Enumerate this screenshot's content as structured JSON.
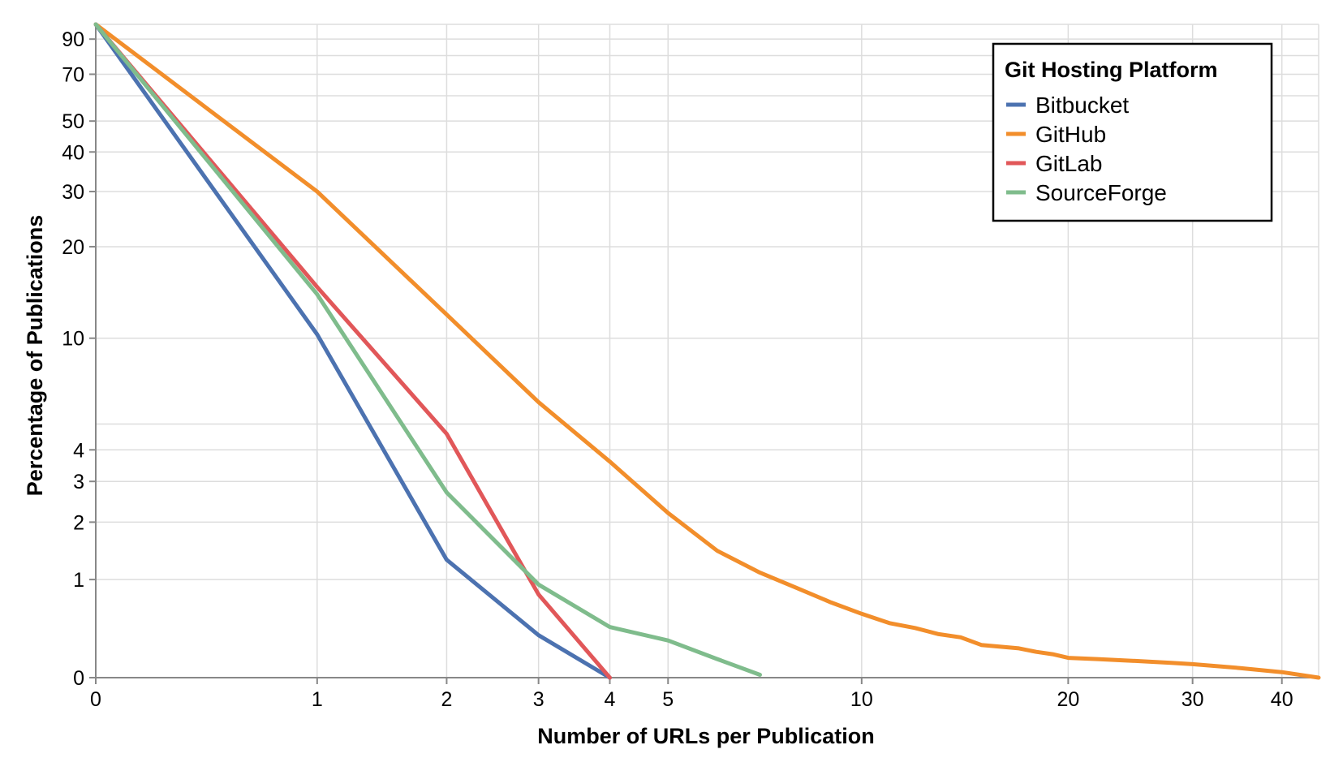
{
  "chart_data": {
    "type": "line",
    "title": "",
    "xlabel": "Number of URLs per Publication",
    "ylabel": "Percentage of Publications",
    "xscale": "symlog",
    "yscale": "symlog",
    "xlim": [
      0,
      45
    ],
    "ylim": [
      0,
      100
    ],
    "x_ticks": [
      0,
      1,
      2,
      3,
      4,
      5,
      10,
      20,
      30,
      40
    ],
    "y_ticks": [
      0,
      1,
      2,
      3,
      4,
      10,
      20,
      30,
      40,
      50,
      70,
      90
    ],
    "y_minor_gridlines": [
      5,
      60,
      80,
      100
    ],
    "grid": true,
    "legend": {
      "title": "Git Hosting Platform",
      "position": "top-right"
    },
    "series": [
      {
        "name": "Bitbucket",
        "color": "#4c72b0",
        "x": [
          0,
          1,
          2,
          3,
          4
        ],
        "y": [
          100,
          10.3,
          1.3,
          0.35,
          0
        ]
      },
      {
        "name": "GitHub",
        "color": "#f28e2b",
        "x": [
          0,
          1,
          2,
          3,
          4,
          5,
          6,
          7,
          8,
          9,
          10,
          11,
          12,
          13,
          14,
          15,
          17,
          18,
          19,
          20,
          22,
          24,
          26,
          28,
          30,
          35,
          40,
          45
        ],
        "y": [
          100,
          30,
          12,
          6,
          3.6,
          2.2,
          1.45,
          1.1,
          0.88,
          0.7,
          0.57,
          0.47,
          0.42,
          0.36,
          0.33,
          0.26,
          0.23,
          0.2,
          0.18,
          0.15,
          0.14,
          0.13,
          0.12,
          0.11,
          0.1,
          0.07,
          0.04,
          0
        ]
      },
      {
        "name": "GitLab",
        "color": "#e15759",
        "x": [
          0,
          1,
          2,
          3,
          4
        ],
        "y": [
          100,
          14.8,
          4.6,
          0.8,
          0
        ]
      },
      {
        "name": "SourceForge",
        "color": "#7fbc8c",
        "x": [
          0,
          1,
          2,
          3,
          4,
          5,
          6,
          7
        ],
        "y": [
          100,
          14,
          2.7,
          0.93,
          0.43,
          0.3,
          0.14,
          0.02
        ]
      }
    ]
  }
}
